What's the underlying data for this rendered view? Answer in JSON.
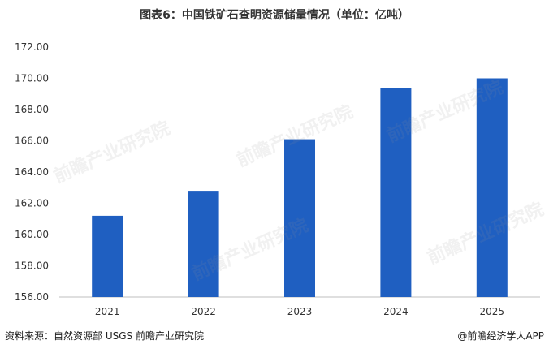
{
  "header": {
    "title": "图表6：中国铁矿石查明资源储量情况（单位：亿吨）"
  },
  "footer": {
    "source": "资料来源：自然资源部 USGS  前瞻产业研究院",
    "watermark_label": "@前瞻经济学人APP"
  },
  "watermark": {
    "text": "前瞻产业研究院"
  },
  "colors": {
    "bar": "#1F5FC1",
    "axis": "#BFBFBF",
    "text": "#333333"
  },
  "chart_data": {
    "type": "bar",
    "title": "图表6：中国铁矿石查明资源储量情况（单位：亿吨）",
    "categories": [
      "2021",
      "2022",
      "2023",
      "2024",
      "2025"
    ],
    "values": [
      161.2,
      162.8,
      166.1,
      169.4,
      170.0
    ],
    "ylim": [
      156,
      172
    ],
    "yticks": [
      "156.00",
      "158.00",
      "160.00",
      "162.00",
      "164.00",
      "166.00",
      "168.00",
      "170.00",
      "172.00"
    ],
    "grid": false,
    "legend": "none"
  }
}
